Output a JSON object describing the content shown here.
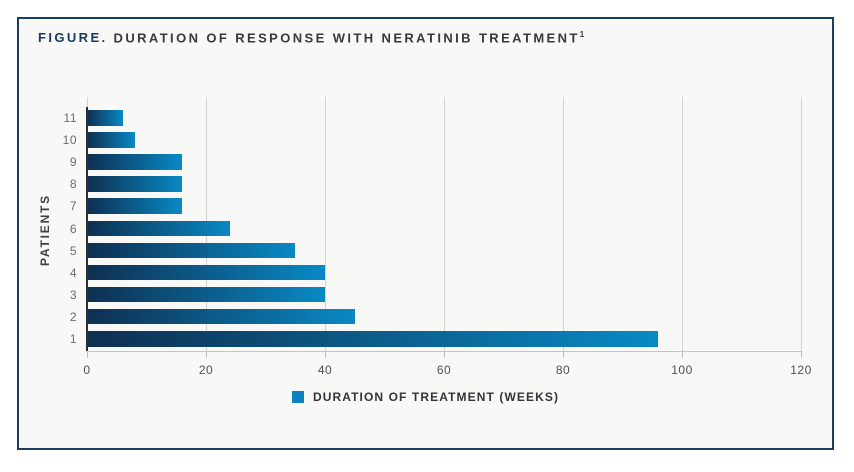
{
  "figure": {
    "title_prefix": "FIGURE.",
    "title_text": "DURATION OF RESPONSE WITH NERATINIB TREATMENT",
    "title_superscript": "1"
  },
  "chart_data": {
    "type": "bar",
    "orientation": "horizontal",
    "title": "FIGURE. DURATION OF RESPONSE WITH NERATINIB TREATMENT¹",
    "ylabel": "PATIENTS",
    "xlabel": "",
    "categories": [
      "11",
      "10",
      "9",
      "8",
      "7",
      "6",
      "5",
      "4",
      "3",
      "2",
      "1"
    ],
    "values": [
      6,
      8,
      16,
      16,
      16,
      24,
      35,
      40,
      40,
      45,
      96
    ],
    "series_name": "DURATION OF TREATMENT (WEEKS)",
    "legend_label": "DURATION OF TREATMENT (WEEKS)",
    "xlim": [
      0,
      120
    ],
    "xticks": [
      0,
      20,
      40,
      60,
      80,
      100,
      120
    ],
    "grid": "vertical",
    "legend_position": "bottom-center"
  },
  "colors": {
    "panel_border": "#1e3c5f",
    "panel_background": "#f8f8f6",
    "title_accent": "#16395f",
    "title_text": "#37393b",
    "bar_gradient_start": "#0e2f51",
    "bar_gradient_end": "#0989c4",
    "legend_swatch": "#0e81c4",
    "gridline": "#d2d2d0"
  }
}
